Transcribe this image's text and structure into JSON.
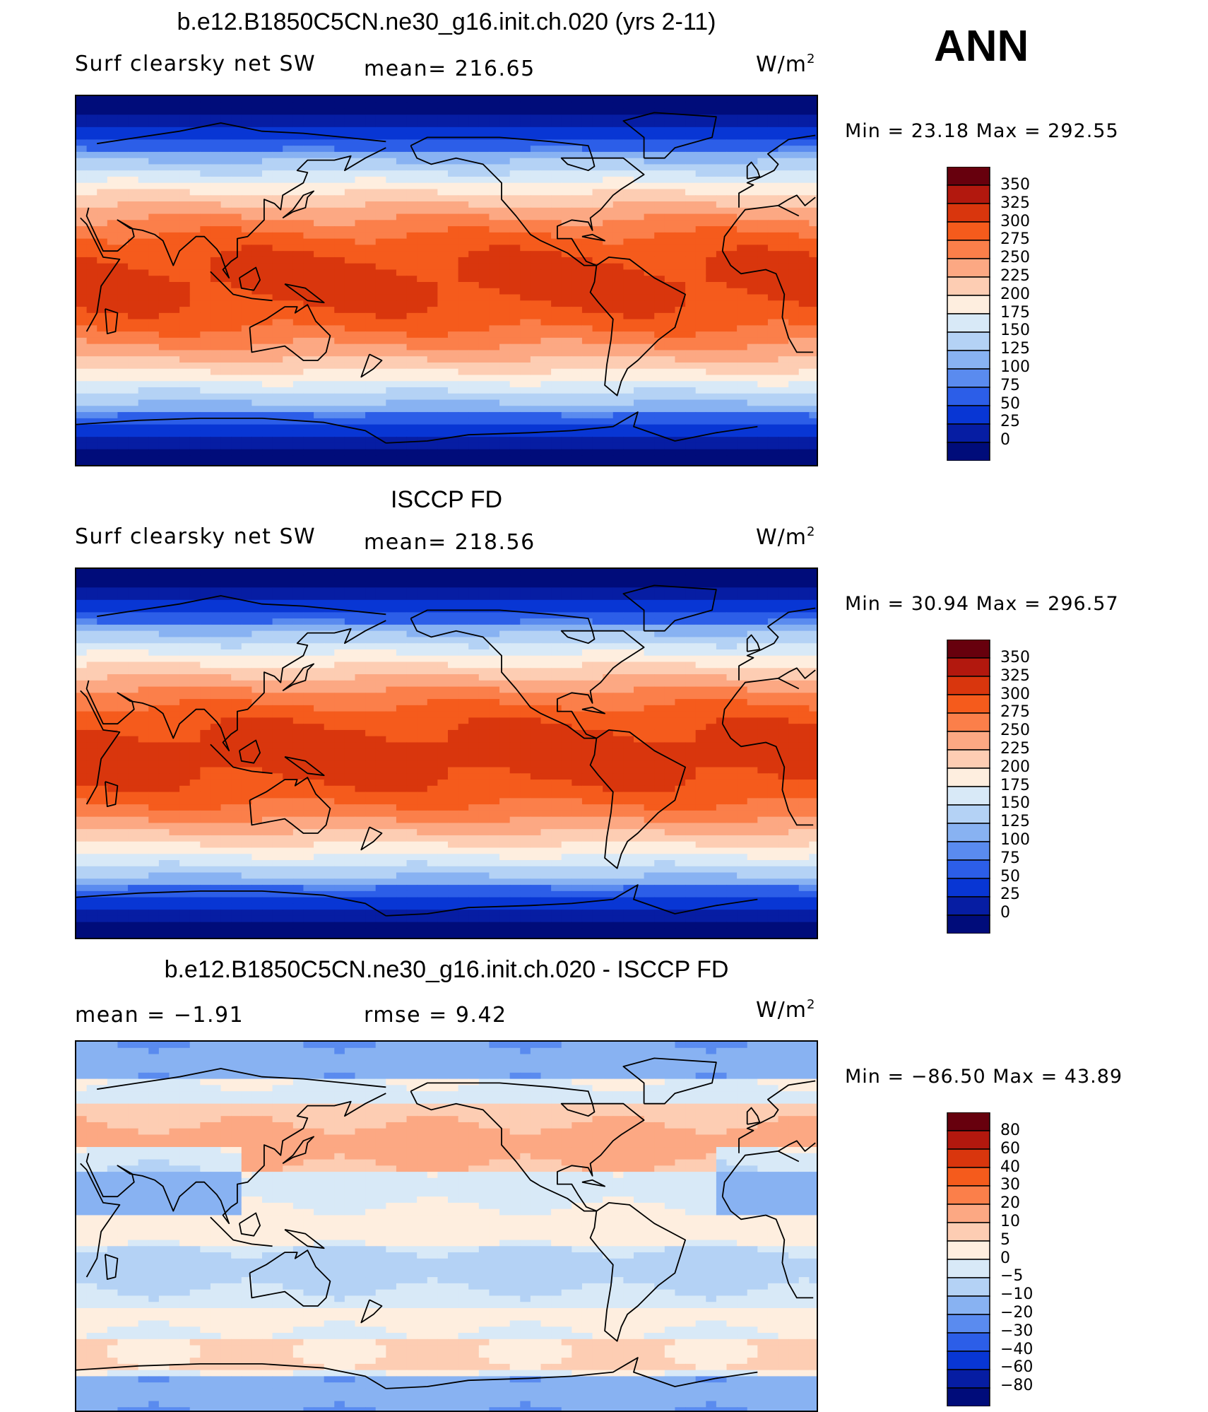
{
  "season": "ANN",
  "units_text": "W/m",
  "units_exp": "2",
  "panels": [
    {
      "title": "b.e12.B1850C5CN.ne30_g16.init.ch.020 (yrs 2-11)",
      "subtitle_left": "Surf clearsky net SW",
      "subtitle_center": "mean= 216.65",
      "minmax": "Min =   23.18 Max = 292.55",
      "colorbar_labels": [
        "350",
        "325",
        "300",
        "275",
        "250",
        "225",
        "200",
        "175",
        "150",
        "125",
        "100",
        "75",
        "50",
        "25",
        "0"
      ],
      "field_kind": "abs",
      "field_mean": 216.65,
      "field_min": 23.18,
      "field_max": 292.55
    },
    {
      "title": "ISCCP FD",
      "subtitle_left": "Surf clearsky net SW",
      "subtitle_center": "mean= 218.56",
      "minmax": "Min =   30.94 Max = 296.57",
      "colorbar_labels": [
        "350",
        "325",
        "300",
        "275",
        "250",
        "225",
        "200",
        "175",
        "150",
        "125",
        "100",
        "75",
        "50",
        "25",
        "0"
      ],
      "field_kind": "abs",
      "field_mean": 218.56,
      "field_min": 30.94,
      "field_max": 296.57
    },
    {
      "title": "b.e12.B1850C5CN.ne30_g16.init.ch.020 - ISCCP FD",
      "subtitle_left": "mean =   −1.91",
      "subtitle_center": "rmse =    9.42",
      "minmax": "Min = −86.50 Max =   43.89",
      "colorbar_labels": [
        "80",
        "60",
        "40",
        "30",
        "20",
        "10",
        "5",
        "0",
        "−5",
        "−10",
        "−20",
        "−30",
        "−40",
        "−60",
        "−80"
      ],
      "field_kind": "diff",
      "field_mean": -1.91,
      "field_min": -86.5,
      "field_max": 43.89
    }
  ],
  "colors": {
    "palette": [
      "#67000d",
      "#b2180e",
      "#d9360d",
      "#f55b1c",
      "#fb7f4a",
      "#fca883",
      "#fdcdb3",
      "#feeedf",
      "#d8e9f7",
      "#b4d2f5",
      "#88b2f2",
      "#5a8bef",
      "#2c5ee8",
      "#0836d4",
      "#061da3",
      "#000c7a"
    ],
    "coastline": "#000000"
  }
}
